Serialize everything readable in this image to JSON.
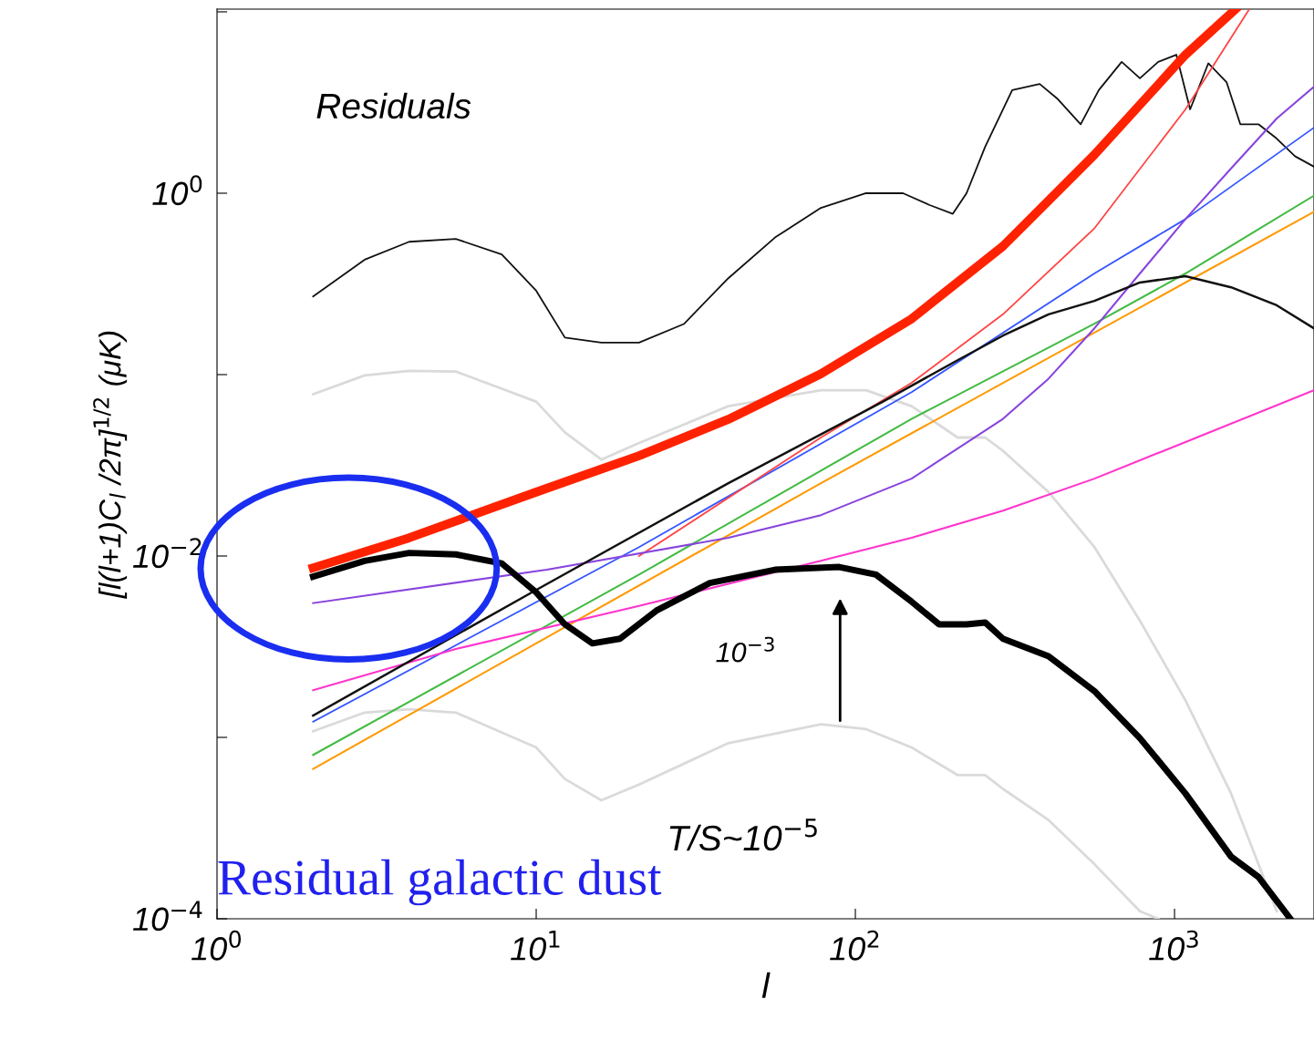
{
  "chart_data": {
    "type": "line",
    "xlabel": "l",
    "ylabel": "[l(l+1)C$_{l}$ /2π]$^{1/2}$ (μK)",
    "log": "xy",
    "grid": false,
    "marker": "none",
    "line_style": "solid",
    "xlim": [
      1,
      2735
    ],
    "ylim": [
      0.0001,
      10.35
    ],
    "xticks": [
      {
        "value": 1,
        "label": "10$^{0}$"
      },
      {
        "value": 10,
        "label": "10$^{1}$"
      },
      {
        "value": 100,
        "label": "10$^{2}$"
      },
      {
        "value": 1000,
        "label": "10$^{3}$"
      }
    ],
    "yticks": [
      {
        "value": 0.0001,
        "label": "10$^{−4}$"
      },
      {
        "value": 0.001,
        "label": null
      },
      {
        "value": 0.01,
        "label": "10$^{−2}$"
      },
      {
        "value": 0.1,
        "label": null
      },
      {
        "value": 1,
        "label": "10$^{0}$"
      },
      {
        "value": 10,
        "label": null
      }
    ],
    "series": [
      {
        "color": "#dadada",
        "x": [
          2,
          2.9,
          4.0,
          5.6,
          10,
          12.3,
          16,
          21,
          40,
          78,
          108,
          150,
          209,
          255,
          290,
          403,
          561,
          779,
          1082,
          1504,
          2090
        ],
        "values": [
          0.078,
          0.099,
          0.105,
          0.104,
          0.071,
          0.048,
          0.034,
          0.042,
          0.067,
          0.082,
          0.082,
          0.067,
          0.045,
          0.045,
          0.038,
          0.0225,
          0.0112,
          0.0044,
          0.0016,
          0.00049,
          0.00011
        ]
      },
      {
        "color": "#dadada",
        "x": [
          2,
          2.9,
          4.0,
          5.6,
          10,
          12.3,
          16,
          21,
          40,
          78,
          108,
          150,
          209,
          255,
          290,
          403,
          561,
          779,
          889
        ],
        "values": [
          0.00108,
          0.00137,
          0.00143,
          0.00137,
          0.00088,
          0.00059,
          0.00045,
          0.00055,
          0.00093,
          0.00118,
          0.00111,
          0.00088,
          0.00062,
          0.00062,
          0.00052,
          0.00035,
          0.0002,
          0.00011,
          0.0001
        ]
      },
      {
        "color": "#111111",
        "x": [
          2,
          2.9,
          4.0,
          5.6,
          7.8,
          10,
          12.3,
          16,
          21,
          29,
          40,
          56,
          78,
          108,
          141,
          171,
          202,
          223,
          255,
          310,
          378,
          431,
          508,
          579,
          683,
          779,
          889,
          1013,
          1119,
          1276,
          1455,
          1607,
          1832,
          2090,
          2384,
          2735
        ],
        "values": [
          0.27,
          0.43,
          0.54,
          0.56,
          0.46,
          0.29,
          0.16,
          0.15,
          0.15,
          0.19,
          0.34,
          0.57,
          0.83,
          1.0,
          1.0,
          0.86,
          0.77,
          1.0,
          1.8,
          3.7,
          4.0,
          3.3,
          2.4,
          3.7,
          5.3,
          4.3,
          5.3,
          5.8,
          2.9,
          5.2,
          4.1,
          2.4,
          2.4,
          2.0,
          1.6,
          1.4
        ]
      },
      {
        "color": "#3355ff",
        "x": [
          2,
          21,
          150,
          561,
          1082,
          2735
        ],
        "values": [
          0.00122,
          0.0112,
          0.08,
          0.361,
          0.72,
          2.3
        ]
      },
      {
        "color": "#ff4444",
        "x": [
          21,
          78,
          150,
          290,
          561,
          1082,
          1715
        ],
        "values": [
          0.01,
          0.045,
          0.09,
          0.215,
          0.64,
          2.9,
          10.35
        ]
      },
      {
        "color": "#44bb44",
        "x": [
          2,
          21,
          150,
          561,
          1082,
          2735
        ],
        "values": [
          0.0008,
          0.0079,
          0.057,
          0.191,
          0.361,
          0.97
        ]
      },
      {
        "color": "#ff9900",
        "x": [
          2,
          78,
          2735
        ],
        "values": [
          0.00067,
          0.0252,
          0.79
        ]
      },
      {
        "color": "#8844dd",
        "x": [
          2,
          10.8,
          40,
          78,
          150,
          290,
          403,
          561,
          779,
          1082,
          1504,
          2090,
          2735
        ],
        "values": [
          0.0055,
          0.0084,
          0.0126,
          0.0168,
          0.0267,
          0.057,
          0.095,
          0.18,
          0.361,
          0.72,
          1.37,
          2.58,
          3.87
        ]
      },
      {
        "color": "#ff33cc",
        "x": [
          2,
          5.6,
          21,
          78,
          150,
          290,
          561,
          1082,
          2735
        ],
        "values": [
          0.00182,
          0.00307,
          0.0053,
          0.0094,
          0.0126,
          0.0178,
          0.0267,
          0.0425,
          0.082
        ]
      },
      {
        "color": "#111111",
        "x": [
          2,
          10,
          40,
          122,
          209,
          290,
          403,
          561,
          779,
          1082,
          1504,
          2090,
          2735
        ],
        "values": [
          0.00132,
          0.0065,
          0.0252,
          0.071,
          0.12,
          0.164,
          0.215,
          0.255,
          0.322,
          0.349,
          0.303,
          0.241,
          0.18
        ]
      },
      {
        "color": "#000000",
        "x": [
          2,
          2.9,
          4.0,
          5.6,
          7.8,
          10,
          12.3,
          15,
          18.3,
          23.8,
          35,
          56,
          89,
          116,
          150,
          183,
          223,
          255,
          290,
          403,
          561,
          779,
          1082,
          1504,
          1832,
          2306
        ],
        "values": [
          0.0077,
          0.0094,
          0.0104,
          0.0102,
          0.0091,
          0.0063,
          0.0042,
          0.0033,
          0.0035,
          0.005,
          0.0071,
          0.0084,
          0.0087,
          0.0079,
          0.0056,
          0.0042,
          0.0042,
          0.0043,
          0.0035,
          0.0028,
          0.0018,
          0.00099,
          0.00049,
          0.00022,
          0.00017,
          0.0001
        ]
      },
      {
        "color": "#ff2200",
        "x": [
          2,
          4.0,
          10,
          21,
          40,
          78,
          150,
          290,
          561,
          1082,
          1554
        ],
        "values": [
          0.0086,
          0.0126,
          0.0225,
          0.0357,
          0.0567,
          0.101,
          0.203,
          0.51,
          1.63,
          5.8,
          10.35
        ]
      }
    ],
    "annotations": [
      "Residuals",
      "10$^{−3}$",
      "T/S~10$^{−5}$",
      "Residual galactic dust"
    ]
  }
}
